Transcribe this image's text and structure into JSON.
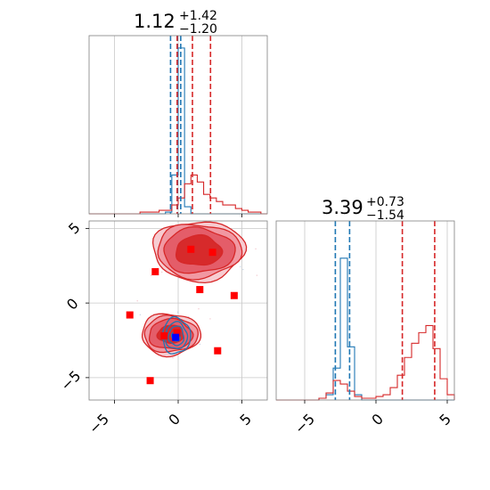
{
  "chart_data": [
    {
      "type": "histogram",
      "panel": "param-1-marginal",
      "title": {
        "value": "1.12",
        "plus": "+1.42",
        "minus": "−1.20"
      },
      "xlim": [
        -7,
        7
      ],
      "grid": true,
      "series": [
        {
          "color": "#1f77b4",
          "bin_edges": [
            -7,
            -6.5,
            -6,
            -5.5,
            -5,
            -4.5,
            -4,
            -3.5,
            -3,
            -2.5,
            -2,
            -1.5,
            -1,
            -0.5,
            0,
            0.5,
            1,
            1.5,
            2,
            2.5,
            3,
            3.5,
            4,
            4.5,
            5,
            5.5,
            6,
            6.5,
            7
          ],
          "relative_heights": [
            0,
            0,
            0,
            0,
            0,
            0,
            0,
            0,
            0,
            0,
            0,
            0,
            0.01,
            0.22,
            0.94,
            0.04,
            0,
            0,
            0,
            0,
            0,
            0,
            0,
            0,
            0,
            0,
            0,
            0
          ],
          "quantile_lines": [
            -0.6,
            -0.05,
            0.2
          ]
        },
        {
          "color": "#d62728",
          "bin_edges": [
            -7,
            -6.5,
            -6,
            -5.5,
            -5,
            -4.5,
            -4,
            -3.5,
            -3,
            -2.5,
            -2,
            -1.5,
            -1,
            -0.5,
            0,
            0.5,
            1,
            1.5,
            2,
            2.5,
            3,
            3.5,
            4,
            4.5,
            5,
            5.5,
            6,
            6.5,
            7
          ],
          "relative_heights": [
            0,
            0,
            0,
            0,
            0,
            0,
            0,
            0,
            0.01,
            0.01,
            0.01,
            0.02,
            0.02,
            0.05,
            0.09,
            0.17,
            0.22,
            0.18,
            0.11,
            0.09,
            0.07,
            0.05,
            0.05,
            0.03,
            0.02,
            0.01,
            0.01,
            0
          ],
          "quantile_lines": [
            -0.08,
            1.12,
            2.54
          ]
        }
      ]
    },
    {
      "type": "histogram",
      "panel": "param-2-marginal",
      "title": {
        "value": "3.39",
        "plus": "+0.73",
        "minus": "−1.54"
      },
      "xlim": [
        -7,
        5.5
      ],
      "grid": true,
      "series": [
        {
          "color": "#1f77b4",
          "bin_edges": [
            -7,
            -6.5,
            -6,
            -5.5,
            -5,
            -4.5,
            -4,
            -3.5,
            -3,
            -2.5,
            -2,
            -1.5,
            -1,
            -0.5,
            0,
            0.5,
            1,
            1.5,
            2,
            2.5,
            3,
            3.5,
            4,
            4.5,
            5,
            5.5
          ],
          "relative_heights": [
            0,
            0,
            0,
            0,
            0,
            0,
            0.01,
            0.03,
            0.18,
            0.8,
            0.3,
            0.03,
            0,
            0,
            0,
            0,
            0,
            0,
            0,
            0,
            0,
            0,
            0,
            0,
            0
          ],
          "quantile_lines": [
            -2.85,
            -1.85
          ]
        },
        {
          "color": "#d62728",
          "bin_edges": [
            -7,
            -6.5,
            -6,
            -5.5,
            -5,
            -4.5,
            -4,
            -3.5,
            -3,
            -2.5,
            -2,
            -1.5,
            -1,
            -0.5,
            0,
            0.5,
            1,
            1.5,
            2,
            2.5,
            3,
            3.5,
            4,
            4.5,
            5,
            5.5
          ],
          "relative_heights": [
            0,
            0,
            0,
            0,
            0,
            0,
            0.01,
            0.04,
            0.11,
            0.09,
            0.05,
            0.02,
            0.01,
            0.01,
            0.02,
            0.03,
            0.07,
            0.14,
            0.24,
            0.32,
            0.38,
            0.42,
            0.29,
            0.12,
            0.03
          ],
          "quantile_lines": [
            1.85,
            4.12
          ]
        }
      ]
    },
    {
      "type": "contour-scatter",
      "panel": "joint",
      "xlim": [
        -7,
        7
      ],
      "ylim": [
        -6.5,
        5.5
      ],
      "grid": true,
      "red_contours": [
        {
          "cx": 1.6,
          "cy": 3.5,
          "rx": [
            3.6,
            3.3,
            2.8,
            1.8
          ],
          "ry": [
            2.0,
            1.8,
            1.5,
            1.0
          ]
        },
        {
          "cx": -0.6,
          "cy": -2.1,
          "rx": [
            2.3,
            2.1,
            1.7,
            1.0
          ],
          "ry": [
            1.4,
            1.2,
            1.0,
            0.6
          ]
        }
      ],
      "blue_contours": [
        {
          "cx": -0.15,
          "cy": -2.2,
          "rx": [
            1.1,
            0.85,
            0.6,
            0.35
          ],
          "ry": [
            1.2,
            0.9,
            0.65,
            0.35
          ]
        }
      ],
      "red_markers": [
        {
          "x": 1.0,
          "y": 3.6
        },
        {
          "x": 2.7,
          "y": 3.4
        },
        {
          "x": -1.8,
          "y": 2.1
        },
        {
          "x": 1.7,
          "y": 0.9
        },
        {
          "x": 4.4,
          "y": 0.5
        },
        {
          "x": -3.8,
          "y": -0.8
        },
        {
          "x": -1.1,
          "y": -2.2
        },
        {
          "x": -0.1,
          "y": -2.0
        },
        {
          "x": 3.1,
          "y": -3.2
        },
        {
          "x": -2.2,
          "y": -5.2
        }
      ],
      "blue_markers": [
        {
          "x": -0.2,
          "y": -2.3
        }
      ]
    }
  ],
  "ticks": {
    "joint_x": [
      "−5",
      "0",
      "5"
    ],
    "joint_y": [
      "5",
      "0",
      "−5"
    ],
    "marg2_x": [
      "−5",
      "0",
      "5"
    ]
  }
}
